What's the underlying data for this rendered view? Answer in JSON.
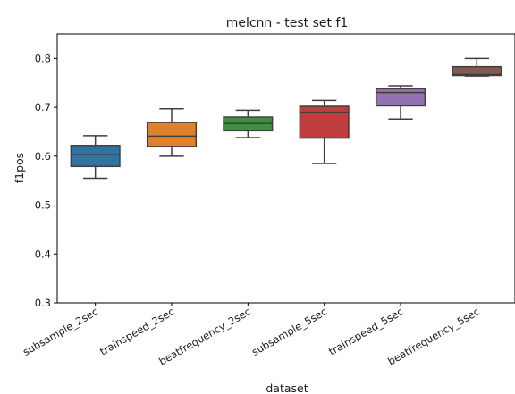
{
  "chart_data": {
    "type": "box",
    "title": "melcnn - test set f1",
    "xlabel": "dataset",
    "ylabel": "f1pos",
    "ylim": [
      0.3,
      0.85
    ],
    "yticks": [
      "0.3",
      "0.4",
      "0.5",
      "0.6",
      "0.7",
      "0.8"
    ],
    "grid": false,
    "categories": [
      "subsample_2sec",
      "trainspeed_2sec",
      "beatfrequency_2sec",
      "subsample_5sec",
      "trainspeed_5sec",
      "beatfrequency_5sec"
    ],
    "boxes": [
      {
        "color": "#3274a1",
        "whisker_low": 0.555,
        "q1": 0.579,
        "median": 0.603,
        "q3": 0.622,
        "whisker_high": 0.642
      },
      {
        "color": "#e1812c",
        "whisker_low": 0.6,
        "q1": 0.62,
        "median": 0.641,
        "q3": 0.669,
        "whisker_high": 0.697
      },
      {
        "color": "#3a923a",
        "whisker_low": 0.638,
        "q1": 0.652,
        "median": 0.667,
        "q3": 0.68,
        "whisker_high": 0.694
      },
      {
        "color": "#c03d3e",
        "whisker_low": 0.585,
        "q1": 0.637,
        "median": 0.69,
        "q3": 0.702,
        "whisker_high": 0.714
      },
      {
        "color": "#9372b2",
        "whisker_low": 0.676,
        "q1": 0.703,
        "median": 0.73,
        "q3": 0.738,
        "whisker_high": 0.744
      },
      {
        "color": "#845b53",
        "whisker_low": 0.764,
        "q1": 0.765,
        "median": 0.767,
        "q3": 0.783,
        "whisker_high": 0.8
      }
    ]
  }
}
